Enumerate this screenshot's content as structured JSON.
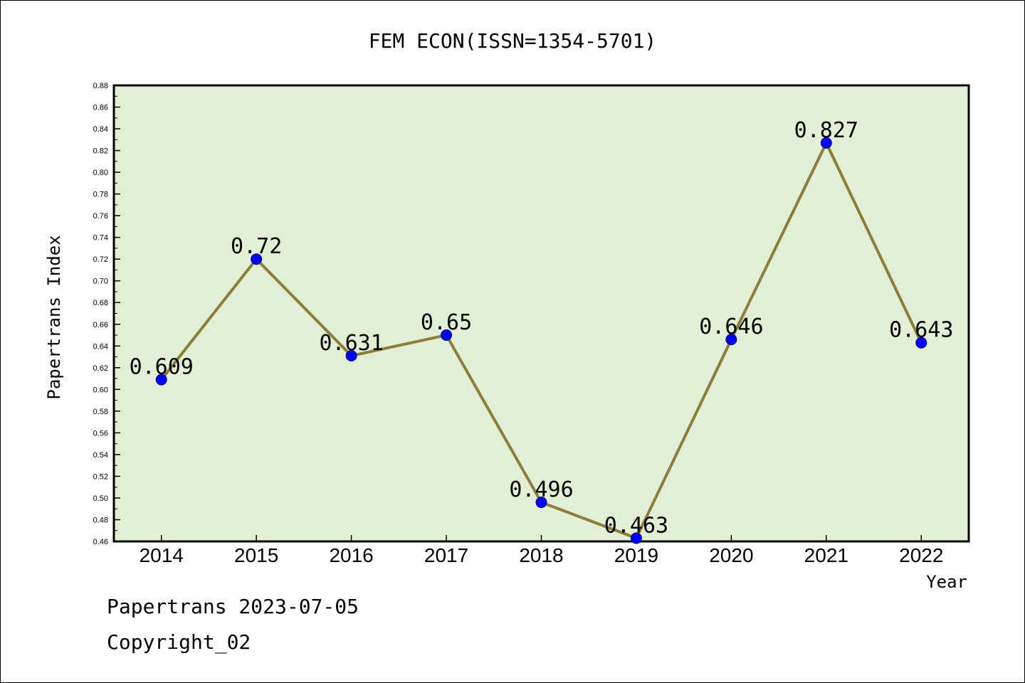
{
  "chart_data": {
    "type": "line",
    "title": "FEM ECON(ISSN=1354-5701)",
    "xlabel": "Year",
    "ylabel": "Papertrans Index",
    "categories": [
      "2014",
      "2015",
      "2016",
      "2017",
      "2018",
      "2019",
      "2020",
      "2021",
      "2022"
    ],
    "values": [
      0.609,
      0.72,
      0.631,
      0.65,
      0.496,
      0.463,
      0.646,
      0.827,
      0.643
    ],
    "data_labels": [
      "0.609",
      "0.72",
      "0.631",
      "0.65",
      "0.496",
      "0.463",
      "0.646",
      "0.827",
      "0.643"
    ],
    "ylim": [
      0.46,
      0.88
    ],
    "y_ticks": [
      "0.46",
      "0.48",
      "0.50",
      "0.52",
      "0.54",
      "0.56",
      "0.58",
      "0.60",
      "0.62",
      "0.64",
      "0.66",
      "0.68",
      "0.70",
      "0.72",
      "0.74",
      "0.76",
      "0.78",
      "0.80",
      "0.82",
      "0.84",
      "0.86",
      "0.88"
    ],
    "grid": false,
    "colors": {
      "plot_background": "#e2efd5",
      "line": "#8b7d3a",
      "marker": "#0000ff"
    }
  },
  "footer": {
    "line1": "Papertrans 2023-07-05",
    "line2": "Copyright_02"
  }
}
